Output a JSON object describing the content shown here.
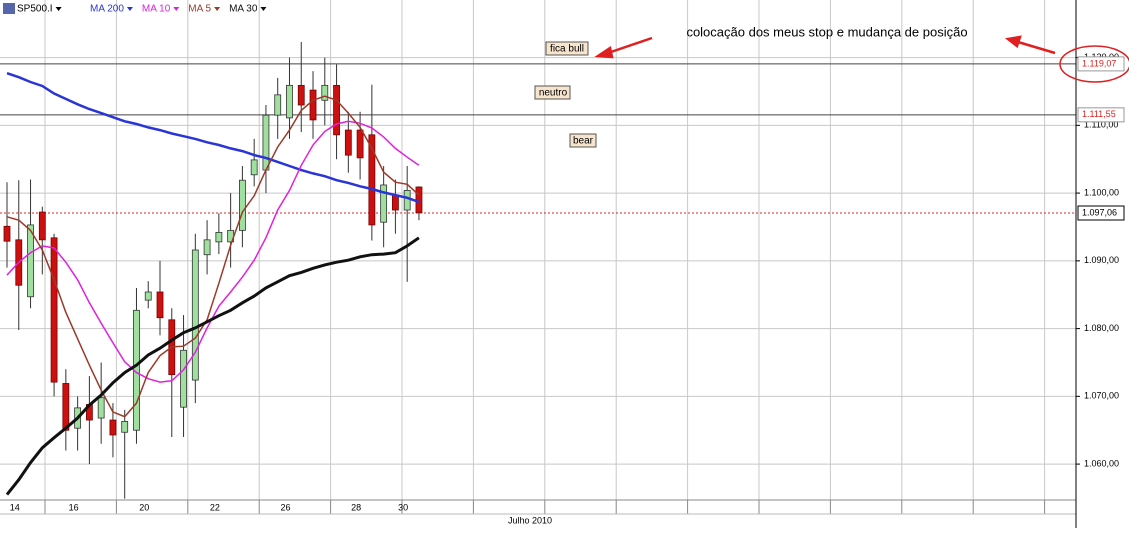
{
  "chart_data": {
    "type": "candlestick",
    "title": "SP500.I",
    "month_label": "Julho 2010",
    "categories": [
      null,
      "14",
      null,
      null,
      null,
      null,
      "16",
      null,
      null,
      null,
      null,
      null,
      "20",
      null,
      null,
      null,
      null,
      null,
      "22",
      null,
      null,
      null,
      null,
      null,
      "26",
      null,
      null,
      null,
      null,
      null,
      "28",
      null,
      null,
      null,
      "30",
      null
    ],
    "open": [
      1095.1,
      1093.1,
      1084.7,
      1097.2,
      1093.4,
      1071.9,
      1065.3,
      1068.8,
      1066.8,
      1066.5,
      1064.7,
      1065,
      1084.2,
      1085.4,
      1081.3,
      1068.4,
      1072.4,
      1090.9,
      1092.8,
      1092.8,
      1094.5,
      1102.7,
      1103.4,
      1111.5,
      1111.1,
      1115.9,
      1115.2,
      1113.7,
      1115.9,
      1109.3,
      1109.3,
      1108.6,
      1095.7,
      1099.7,
      1097.5,
      1100.9
    ],
    "high": [
      1101.6,
      1101.9,
      1102,
      1098,
      1094,
      1074,
      1070,
      1073,
      1075,
      1069,
      1068,
      1086,
      1087,
      1090,
      1083,
      1082,
      1094,
      1096,
      1097,
      1100,
      1104,
      1108,
      1113,
      1117,
      1120,
      1122.3,
      1118,
      1120,
      1119,
      1112,
      1112,
      1116,
      1104,
      1102,
      1104,
      1101
    ],
    "low": [
      1089,
      1079.8,
      1083,
      1088,
      1070,
      1062,
      1062,
      1060,
      1063,
      1061,
      1054.9,
      1063,
      1083,
      1079,
      1064,
      1064,
      1069,
      1088,
      1091,
      1089,
      1092,
      1101,
      1100,
      1108,
      1108,
      1109,
      1108,
      1110,
      1105,
      1103,
      1102,
      1093,
      1092,
      1094,
      1086.9,
      1096
    ],
    "close": [
      1092.9,
      1086.4,
      1095.3,
      1093.1,
      1072.1,
      1065,
      1068.3,
      1066.5,
      1069.8,
      1064.3,
      1066.3,
      1082.7,
      1085.4,
      1081.6,
      1073.2,
      1076.8,
      1091.6,
      1093.1,
      1094.2,
      1094.5,
      1101.9,
      1104.9,
      1111.5,
      1114.5,
      1115.9,
      1113,
      1110.8,
      1115.9,
      1108.6,
      1105.6,
      1105.2,
      1095.3,
      1101.2,
      1097.5,
      1100.4,
      1097.1
    ],
    "up_color": "#9fe09f",
    "down_color": "#cc1010",
    "series": [
      {
        "name": "MA 200",
        "color": "#2a35d8",
        "width": 2.5,
        "values": [
          1117.7,
          1117.1,
          1116.4,
          1115.8,
          1114.7,
          1113.9,
          1113.1,
          1112.4,
          1111.8,
          1111.2,
          1110.6,
          1110.2,
          1109.7,
          1109.3,
          1108.8,
          1108.4,
          1108.0,
          1107.5,
          1107.1,
          1106.6,
          1106.2,
          1105.6,
          1105.2,
          1104.6,
          1104.0,
          1103.4,
          1102.9,
          1102.5,
          1101.9,
          1101.5,
          1101.0,
          1100.6,
          1100.1,
          1099.7,
          1099.3,
          1098.7
        ]
      },
      {
        "name": "MA 10",
        "color": "#e020e0",
        "width": 1.5,
        "values": [
          1087.9,
          1089.8,
          1091.2,
          1092.2,
          1091.9,
          1089.8,
          1087.2,
          1083.8,
          1080.8,
          1077.9,
          1075.1,
          1073.5,
          1072.6,
          1072.1,
          1072.3,
          1073.9,
          1076.5,
          1080.1,
          1083.3,
          1085.4,
          1087.6,
          1090.1,
          1093.4,
          1097.5,
          1100.4,
          1104.1,
          1107.1,
          1109.1,
          1110.2,
          1110.6,
          1110.3,
          1109.6,
          1108.3,
          1106.6,
          1105.3,
          1104.1
        ]
      },
      {
        "name": "MA 5",
        "color": "#9a3a2a",
        "width": 1.5,
        "values": [
          1096.5,
          1096.0,
          1094.5,
          1091.6,
          1087.2,
          1082.4,
          1078.5,
          1074.6,
          1070.9,
          1067.7,
          1067.0,
          1069.0,
          1073.5,
          1076.0,
          1077.3,
          1077.4,
          1078.6,
          1081.3,
          1086.7,
          1092.3,
          1097.2,
          1099.6,
          1103.4,
          1106.8,
          1109.3,
          1112.2,
          1113.7,
          1114.3,
          1113.7,
          1111.8,
          1109.7,
          1106.6,
          1103.1,
          1101.6,
          1101.3,
          1099.7
        ]
      },
      {
        "name": "MA 30",
        "color": "#111111",
        "width": 3,
        "values": [
          1055.5,
          1057.7,
          1060.2,
          1062.4,
          1063.9,
          1065.3,
          1066.8,
          1068.7,
          1070.2,
          1072.0,
          1073.5,
          1074.6,
          1076.1,
          1077.1,
          1078.3,
          1079.4,
          1080.1,
          1081.0,
          1081.9,
          1082.7,
          1083.8,
          1084.8,
          1086.0,
          1086.9,
          1087.8,
          1088.3,
          1088.9,
          1089.4,
          1089.8,
          1090.1,
          1090.6,
          1090.9,
          1091.0,
          1091.2,
          1092.2,
          1093.4
        ]
      }
    ],
    "hlines": [
      {
        "value": 1119.07,
        "label": "1.119,07",
        "color": "#444444",
        "text_color": "#dd2222",
        "dash": "none"
      },
      {
        "value": 1111.55,
        "label": "1.111,55",
        "color": "#444444",
        "text_color": "#dd2222",
        "dash": "none"
      },
      {
        "value": 1097.06,
        "label": "1.097,06",
        "color": "#e02020",
        "text_color": "#000000",
        "dash": "2,2"
      }
    ],
    "annotations": [
      {
        "text": "fica bull"
      },
      {
        "text": "neutro"
      },
      {
        "text": "bear"
      },
      {
        "text": "colocação dos meus stop e mudança de posição"
      }
    ],
    "ylim": [
      1054.7,
      1128.5
    ],
    "yticks": [
      {
        "value": 1060,
        "label": "1.060,00"
      },
      {
        "value": 1070,
        "label": "1.070,00"
      },
      {
        "value": 1080,
        "label": "1.080,00"
      },
      {
        "value": 1090,
        "label": "1.090,00"
      },
      {
        "value": 1100,
        "label": "1.100,00"
      },
      {
        "value": 1110,
        "label": "1.110,00"
      },
      {
        "value": 1120,
        "label": "1.120,00"
      }
    ],
    "grid": true
  }
}
